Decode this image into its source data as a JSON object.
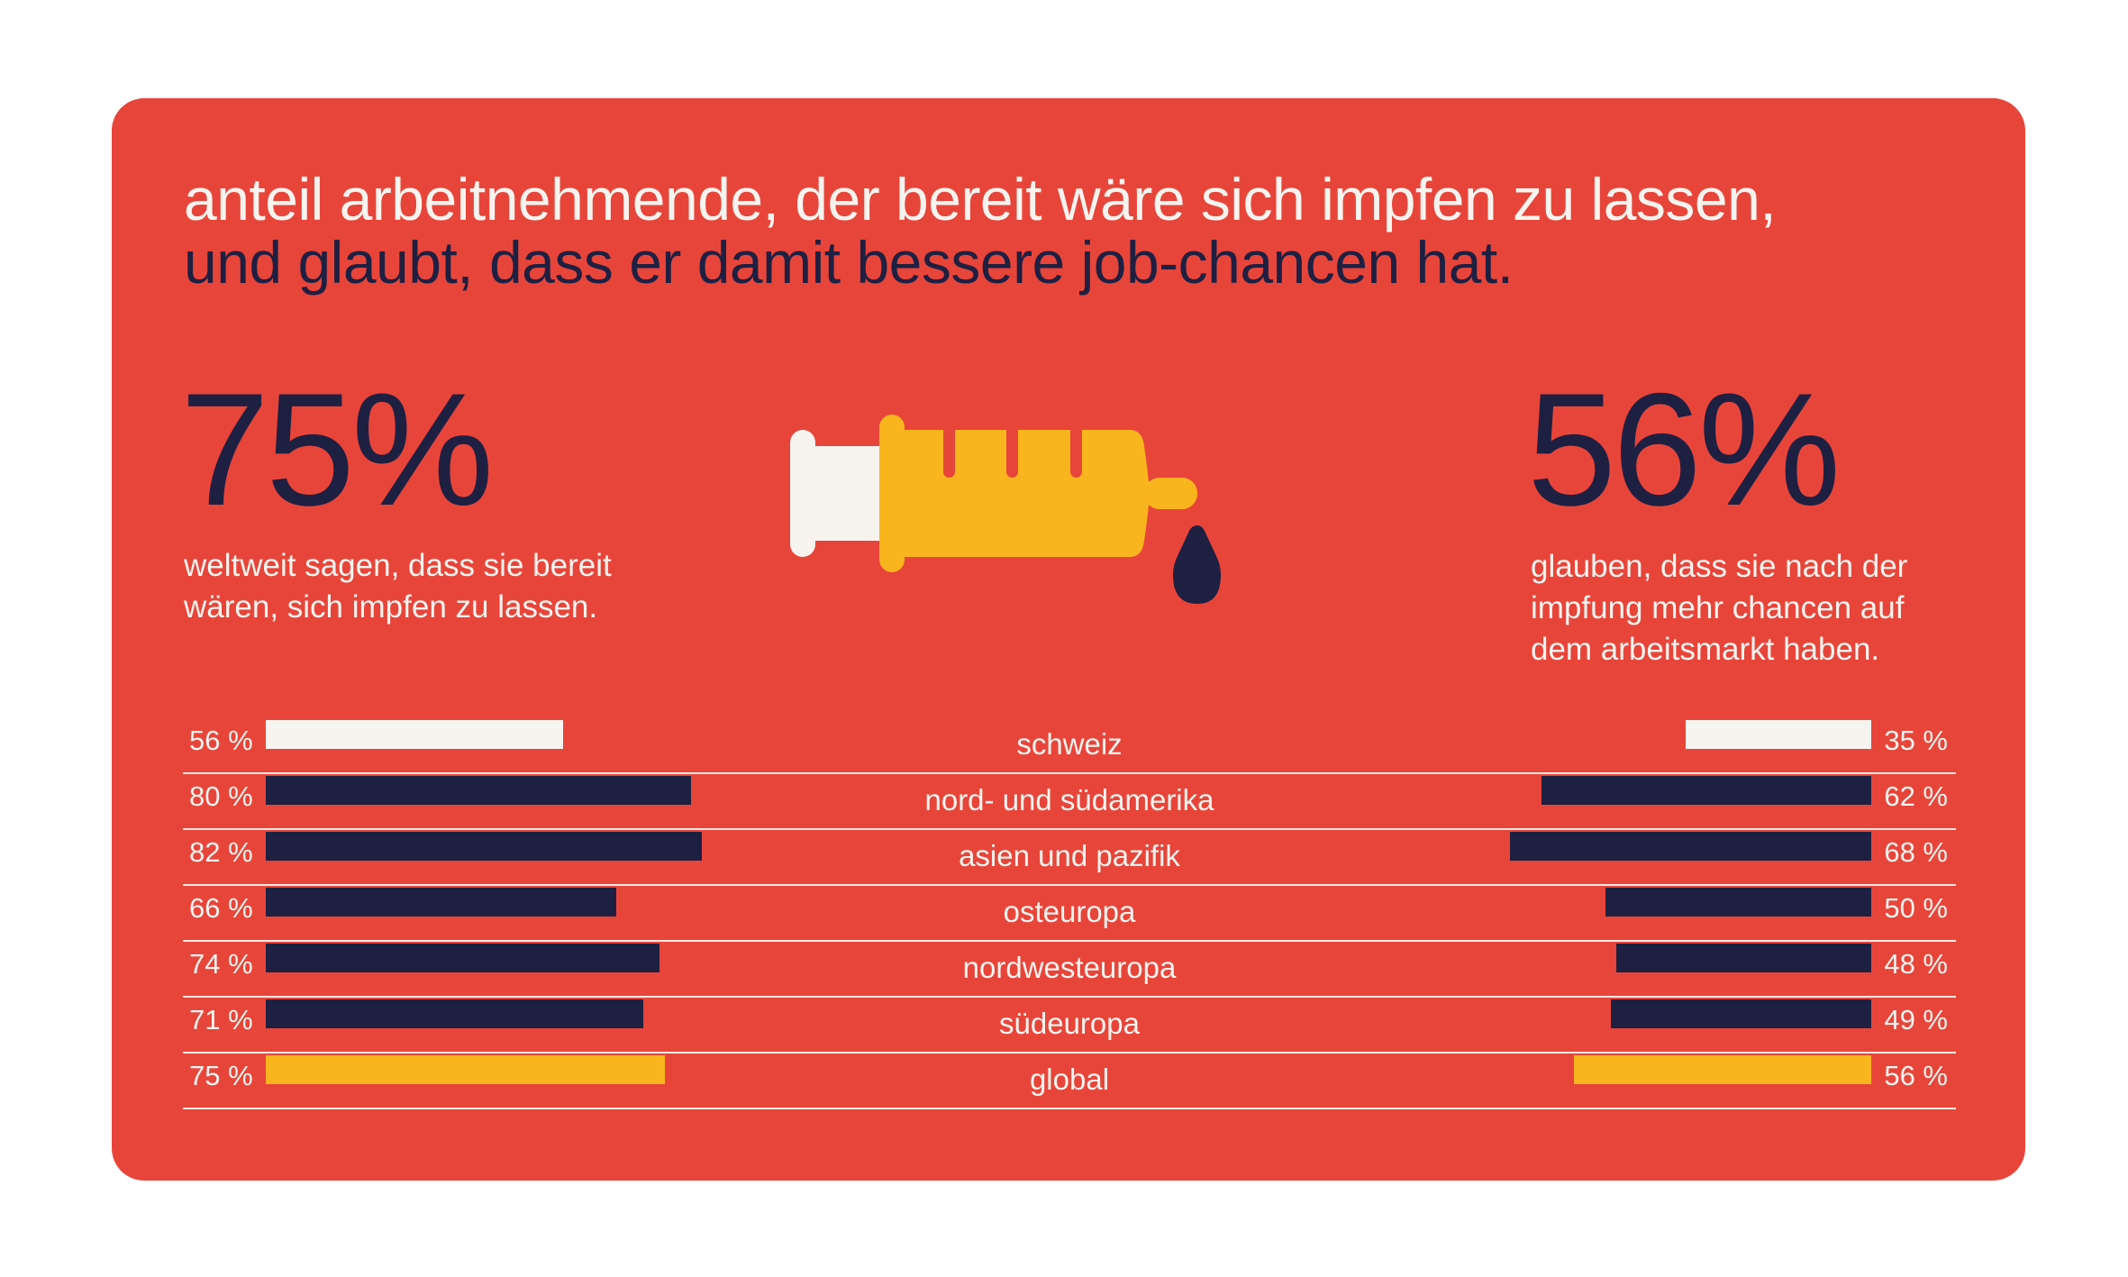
{
  "title": {
    "line1": "anteil arbeitnehmende, der bereit wäre sich impfen zu lassen,",
    "line2": "und glaubt, dass er damit bessere job-chancen hat."
  },
  "left_stat": {
    "value": "75%",
    "text_lines": [
      "weltweit sagen, dass sie bereit",
      "wären, sich impfen zu lassen."
    ]
  },
  "right_stat": {
    "value": "56%",
    "text_lines": [
      "glauben, dass sie nach der",
      "impfung mehr chancen auf",
      "dem arbeitsmarkt haben."
    ]
  },
  "icon": "syringe-icon",
  "colors": {
    "background": "#E8453A",
    "navy": "#1E2042",
    "yellow": "#F9B51E",
    "cream": "#F7F4EF"
  },
  "chart_data": {
    "type": "bar",
    "orientation": "horizontal-butterfly",
    "categories": [
      "schweiz",
      "nord- und südamerika",
      "asien und pazifik",
      "osteuropa",
      "nordwesteuropa",
      "südeuropa",
      "global"
    ],
    "series": [
      {
        "values": [
          56,
          80,
          82,
          66,
          74,
          71,
          75
        ],
        "labels": [
          "56 %",
          "80 %",
          "82 %",
          "66 %",
          "74 %",
          "71 %",
          "75 %"
        ]
      },
      {
        "values": [
          35,
          62,
          68,
          50,
          48,
          49,
          56
        ],
        "labels": [
          "35 %",
          "62 %",
          "68 %",
          "50 %",
          "48 %",
          "49 %",
          "56 %"
        ]
      }
    ],
    "bar_colors": [
      "#F7F4EF",
      "#1E2042",
      "#1E2042",
      "#1E2042",
      "#1E2042",
      "#1E2042",
      "#F9B51E"
    ],
    "unit": "%"
  }
}
